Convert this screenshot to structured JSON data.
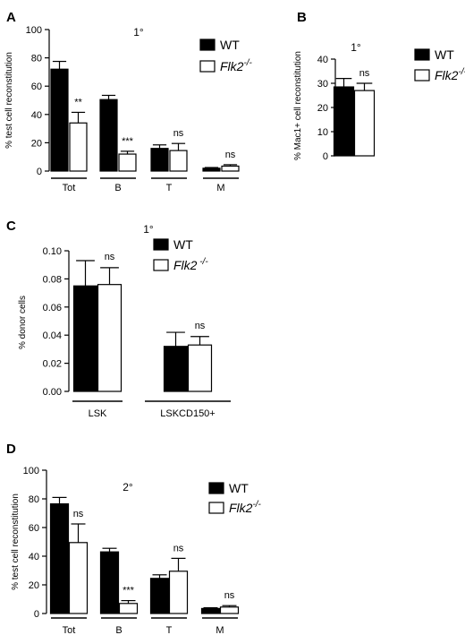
{
  "colors": {
    "wt": "#000000",
    "flk2": "#ffffff",
    "stroke": "#000000"
  },
  "chart_data": [
    {
      "type": "bar",
      "panel": "A",
      "title": "1°",
      "ylabel": "% test cell reconstitution",
      "ylim": [
        0,
        100
      ],
      "yticks": [
        0,
        20,
        40,
        60,
        80,
        100
      ],
      "ytick_labels": [
        "0",
        "20",
        "40",
        "60",
        "80",
        "100"
      ],
      "categories": [
        "Tot",
        "B",
        "T",
        "M"
      ],
      "series": [
        {
          "name": "WT",
          "values": [
            72,
            50.5,
            16,
            2
          ],
          "errors": [
            5.5,
            3,
            2.5,
            0.5
          ]
        },
        {
          "name": "Flk2",
          "name_sup": "-/-",
          "values": [
            34,
            12,
            14.5,
            3.5
          ],
          "errors": [
            7.5,
            2,
            5,
            1
          ]
        }
      ],
      "annotations": [
        "**",
        "***",
        "ns",
        "ns",
        "ns"
      ]
    },
    {
      "type": "bar",
      "panel": "B",
      "title": "1°",
      "ylabel": "% Mac1+ cell reconstitution",
      "ylim": [
        0,
        40
      ],
      "yticks": [
        0,
        10,
        20,
        30,
        40
      ],
      "ytick_labels": [
        "0",
        "10",
        "20",
        "30",
        "40"
      ],
      "categories": [
        ""
      ],
      "series": [
        {
          "name": "WT",
          "values": [
            28.5
          ],
          "errors": [
            3.5
          ]
        },
        {
          "name": "Flk2",
          "name_sup": "-/-",
          "values": [
            27
          ],
          "errors": [
            3
          ]
        }
      ],
      "annotations": [
        "ns"
      ]
    },
    {
      "type": "bar",
      "panel": "C",
      "title": "1°",
      "ylabel": "% donor cells",
      "ylim": [
        0,
        0.1
      ],
      "yticks": [
        0,
        0.02,
        0.04,
        0.06,
        0.08,
        0.1
      ],
      "ytick_labels": [
        "0.00",
        "0.02",
        "0.04",
        "0.06",
        "0.08",
        "0.10"
      ],
      "categories": [
        "LSK",
        "LSKCD150+"
      ],
      "series": [
        {
          "name": "WT",
          "values": [
            0.075,
            0.032
          ],
          "errors": [
            0.018,
            0.01
          ]
        },
        {
          "name": "Flk2",
          "name_sup": " -/-",
          "values": [
            0.076,
            0.033
          ],
          "errors": [
            0.012,
            0.006
          ]
        }
      ],
      "annotations": [
        "ns",
        "ns"
      ]
    },
    {
      "type": "bar",
      "panel": "D",
      "title": "2°",
      "ylabel": "% test cell reconstitution",
      "ylim": [
        0,
        100
      ],
      "yticks": [
        0,
        20,
        40,
        60,
        80,
        100
      ],
      "ytick_labels": [
        "0",
        "20",
        "40",
        "60",
        "80",
        "100"
      ],
      "categories": [
        "Tot",
        "B",
        "T",
        "M"
      ],
      "series": [
        {
          "name": "WT",
          "values": [
            76.5,
            43,
            24.5,
            3.5
          ],
          "errors": [
            4.5,
            2.5,
            2.5,
            0.5
          ]
        },
        {
          "name": "Flk2",
          "name_sup": "-/-",
          "values": [
            49.5,
            7,
            29.5,
            4.5
          ],
          "errors": [
            13,
            2,
            9,
            1
          ]
        }
      ],
      "annotations": [
        "ns",
        "***",
        "ns",
        "ns"
      ]
    }
  ]
}
